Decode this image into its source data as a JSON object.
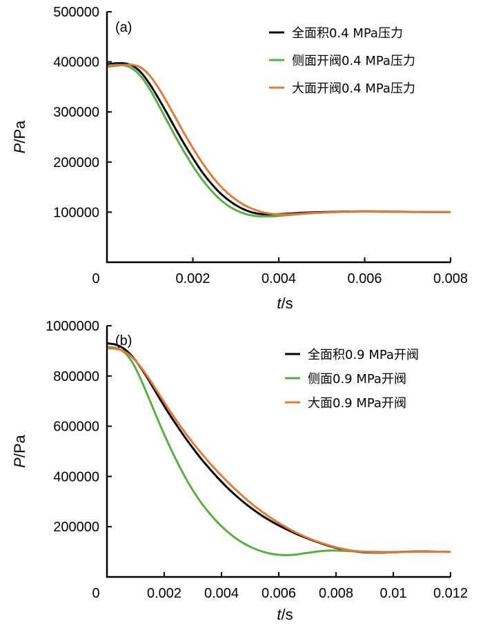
{
  "chart_data": [
    {
      "type": "line",
      "panel_label": "(a)",
      "xlabel": {
        "main": "t",
        "unit": "/s"
      },
      "ylabel": {
        "main": "P",
        "unit": "/Pa"
      },
      "xlim": [
        0,
        0.008
      ],
      "ylim": [
        0,
        500000
      ],
      "xticks": [
        0,
        0.002,
        0.004,
        0.006,
        0.008
      ],
      "xtick_labels": [
        "0",
        "0.002",
        "0.004",
        "0.006",
        "0.008"
      ],
      "yticks": [
        100000,
        200000,
        300000,
        400000,
        500000
      ],
      "ytick_labels": [
        "100000",
        "200000",
        "300000",
        "400000",
        "500000"
      ],
      "legend_position": "top-right",
      "grid": false,
      "series": [
        {
          "name": "全面积0.4 MPa压力",
          "color": "#000000",
          "x": [
            0,
            0.0002,
            0.0004,
            0.0006,
            0.0008,
            0.001,
            0.0012,
            0.0014,
            0.0016,
            0.0018,
            0.002,
            0.0022,
            0.0024,
            0.0026,
            0.0028,
            0.003,
            0.0032,
            0.0034,
            0.0036,
            0.0038,
            0.004,
            0.0042,
            0.0044,
            0.0046,
            0.0048,
            0.005,
            0.0055,
            0.006,
            0.0065,
            0.007,
            0.0075,
            0.008
          ],
          "y": [
            395000,
            397000,
            397000,
            392000,
            378000,
            355000,
            327000,
            297000,
            266000,
            236000,
            208000,
            182000,
            160000,
            141000,
            126000,
            114000,
            105000,
            99000,
            96000,
            95500,
            96000,
            97000,
            98000,
            99000,
            99500,
            100000,
            101000,
            101500,
            101000,
            100500,
            100200,
            100000
          ]
        },
        {
          "name": "侧面开阀0.4 MPa压力",
          "color": "#5aac45",
          "x": [
            0,
            0.0002,
            0.0004,
            0.0006,
            0.0008,
            0.001,
            0.0012,
            0.0014,
            0.0016,
            0.0018,
            0.002,
            0.0022,
            0.0024,
            0.0026,
            0.0028,
            0.003,
            0.0032,
            0.0034,
            0.0036,
            0.0038,
            0.004,
            0.0042,
            0.0044,
            0.0046,
            0.0048,
            0.005,
            0.0055,
            0.006,
            0.0065,
            0.007,
            0.0075,
            0.008
          ],
          "y": [
            392000,
            394000,
            393000,
            386000,
            370000,
            345000,
            314000,
            282000,
            250000,
            220000,
            192000,
            167000,
            146000,
            128000,
            114000,
            104000,
            97000,
            93000,
            91500,
            91500,
            92500,
            94000,
            95500,
            97000,
            98000,
            99000,
            100500,
            101000,
            100800,
            100400,
            100100,
            100000
          ]
        },
        {
          "name": "大面开阀0.4 MPa压力",
          "color": "#e07a3a",
          "x": [
            0,
            0.0002,
            0.0004,
            0.0006,
            0.0008,
            0.001,
            0.0012,
            0.0014,
            0.0016,
            0.0018,
            0.002,
            0.0022,
            0.0024,
            0.0026,
            0.0028,
            0.003,
            0.0032,
            0.0034,
            0.0036,
            0.0038,
            0.004,
            0.0042,
            0.0044,
            0.0046,
            0.0048,
            0.005,
            0.0055,
            0.006,
            0.0065,
            0.007,
            0.0075,
            0.008
          ],
          "y": [
            390000,
            392000,
            394000,
            394000,
            388000,
            372000,
            348000,
            319000,
            288000,
            257000,
            228000,
            201000,
            177000,
            156000,
            139000,
            125000,
            114000,
            106000,
            100500,
            97000,
            95500,
            95500,
            96500,
            97500,
            98500,
            99000,
            100500,
            101500,
            101500,
            100800,
            100300,
            100000
          ]
        }
      ]
    },
    {
      "type": "line",
      "panel_label": "(b)",
      "xlabel": {
        "main": "t",
        "unit": "/s"
      },
      "ylabel": {
        "main": "P",
        "unit": "/Pa"
      },
      "xlim": [
        0,
        0.012
      ],
      "ylim": [
        0,
        1000000
      ],
      "xticks": [
        0,
        0.002,
        0.004,
        0.006,
        0.008,
        0.01,
        0.012
      ],
      "xtick_labels": [
        "0",
        "0.002",
        "0.004",
        "0.006",
        "0.008",
        "0.01",
        "0.012"
      ],
      "yticks": [
        200000,
        400000,
        600000,
        800000,
        1000000
      ],
      "ytick_labels": [
        "200000",
        "400000",
        "600000",
        "800000",
        "1000000"
      ],
      "legend_position": "top-right",
      "grid": false,
      "series": [
        {
          "name": "全面积0.9 MPa开阀",
          "color": "#000000",
          "x": [
            0,
            0.0003,
            0.0006,
            0.0009,
            0.0012,
            0.0015,
            0.0018,
            0.0021,
            0.0024,
            0.0027,
            0.003,
            0.0033,
            0.0036,
            0.0039,
            0.0042,
            0.0045,
            0.0048,
            0.0051,
            0.0054,
            0.0057,
            0.006,
            0.0063,
            0.0066,
            0.0069,
            0.0072,
            0.0075,
            0.0078,
            0.0081,
            0.0084,
            0.0087,
            0.009,
            0.0095,
            0.01,
            0.0105,
            0.011,
            0.0115,
            0.012
          ],
          "y": [
            930000,
            925000,
            908000,
            875000,
            830000,
            776000,
            718000,
            662000,
            610000,
            560000,
            513000,
            469000,
            429000,
            391000,
            356000,
            324000,
            295000,
            269000,
            245000,
            224000,
            205000,
            188000,
            172000,
            158000,
            145000,
            133000,
            122000,
            113000,
            106000,
            101000,
            98000,
            96500,
            98000,
            100500,
            101500,
            100500,
            100000
          ]
        },
        {
          "name": "侧面0.9 MPa开阀",
          "color": "#5aac45",
          "x": [
            0,
            0.0003,
            0.0006,
            0.0009,
            0.0012,
            0.0015,
            0.0018,
            0.0021,
            0.0024,
            0.0027,
            0.003,
            0.0033,
            0.0036,
            0.0039,
            0.0042,
            0.0045,
            0.0048,
            0.0051,
            0.0054,
            0.0057,
            0.006,
            0.0063,
            0.0066,
            0.0069,
            0.0072,
            0.0075,
            0.0078,
            0.0081,
            0.0084,
            0.0087,
            0.009,
            0.0095,
            0.01,
            0.0105,
            0.011,
            0.0115,
            0.012
          ],
          "y": [
            915000,
            912000,
            895000,
            852000,
            782000,
            702000,
            620000,
            542000,
            470000,
            404000,
            345000,
            294000,
            251000,
            213000,
            181000,
            154000,
            132000,
            115000,
            102000,
            93000,
            88000,
            87000,
            89000,
            94000,
            99000,
            103000,
            105000,
            104500,
            103000,
            101500,
            100500,
            99500,
            99500,
            100000,
            100500,
            100200,
            100000
          ]
        },
        {
          "name": "大面0.9 MPa开阀",
          "color": "#e07a3a",
          "x": [
            0,
            0.0003,
            0.0006,
            0.0009,
            0.0012,
            0.0015,
            0.0018,
            0.0021,
            0.0024,
            0.0027,
            0.003,
            0.0033,
            0.0036,
            0.0039,
            0.0042,
            0.0045,
            0.0048,
            0.0051,
            0.0054,
            0.0057,
            0.006,
            0.0063,
            0.0066,
            0.0069,
            0.0072,
            0.0075,
            0.0078,
            0.0081,
            0.0084,
            0.0087,
            0.009,
            0.0095,
            0.01,
            0.0105,
            0.011,
            0.0115,
            0.012
          ],
          "y": [
            910000,
            908000,
            898000,
            872000,
            833000,
            784000,
            731000,
            678000,
            627000,
            579000,
            534000,
            492000,
            452000,
            415000,
            380000,
            347000,
            316000,
            287000,
            261000,
            237000,
            215000,
            195000,
            177000,
            161000,
            147000,
            135000,
            124000,
            115000,
            108000,
            103000,
            99500,
            97500,
            98000,
            99500,
            100500,
            100300,
            100000
          ]
        }
      ]
    }
  ]
}
